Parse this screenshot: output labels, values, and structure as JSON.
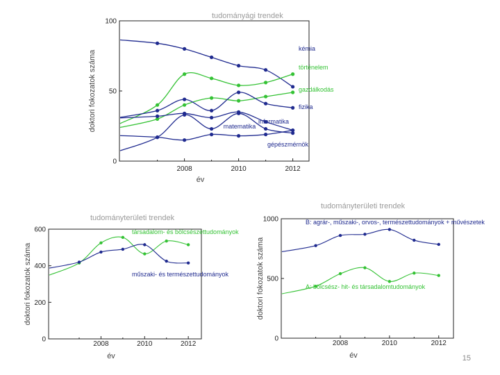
{
  "colors": {
    "blue": "#1f2a8f",
    "green": "#34c234",
    "gray": "#8a8a8a"
  },
  "page_number": "15",
  "chart_data": [
    {
      "type": "line",
      "title": "tudományági trendek",
      "xlabel": "év",
      "ylabel": "doktori  fokozatok  száma",
      "xlim": [
        2005.6,
        2012.6
      ],
      "ylim": [
        0,
        100
      ],
      "x_ticks": [
        2008,
        2010,
        2012
      ],
      "y_ticks": [
        0,
        50,
        100
      ],
      "x": [
        2007,
        2008,
        2009,
        2010,
        2011,
        2012
      ],
      "series": [
        {
          "name": "kémia",
          "color": "blue",
          "values": [
            84,
            80,
            74,
            68,
            65,
            53
          ]
        },
        {
          "name": "történelem",
          "color": "green",
          "values": [
            40,
            62,
            59,
            54,
            56,
            62
          ]
        },
        {
          "name": "gazdálkodás",
          "color": "green",
          "values": [
            30,
            40,
            45,
            43,
            46,
            49
          ]
        },
        {
          "name": "fizika",
          "color": "blue",
          "values": [
            36,
            44,
            36,
            49,
            41,
            38
          ]
        },
        {
          "name": "matematika",
          "color": "blue",
          "values": [
            32,
            34,
            31,
            35,
            28,
            22
          ]
        },
        {
          "name": "informatika",
          "color": "blue",
          "values": [
            17,
            33,
            23,
            34,
            23,
            20
          ]
        },
        {
          "name": "gépészmérnök",
          "color": "blue",
          "values": [
            17,
            15,
            19,
            18,
            19,
            22
          ]
        }
      ]
    },
    {
      "type": "line",
      "title": "tudományterületi trendek",
      "xlabel": "év",
      "ylabel": "doktori  fokozatok  száma",
      "xlim": [
        2005.6,
        2012.6
      ],
      "ylim": [
        0,
        600
      ],
      "x_ticks": [
        2008,
        2010,
        2012
      ],
      "y_ticks": [
        0,
        200,
        400,
        600
      ],
      "x": [
        2007,
        2008,
        2009,
        2010,
        2011,
        2012
      ],
      "series": [
        {
          "name": "társadalom- és bölcsészettudományok",
          "color": "green",
          "values": [
            415,
            525,
            555,
            465,
            535,
            515
          ]
        },
        {
          "name": "műszaki- és természettudományok",
          "color": "blue",
          "values": [
            420,
            475,
            490,
            515,
            425,
            415
          ]
        }
      ]
    },
    {
      "type": "line",
      "title": "tudományterületi trendek",
      "xlabel": "év",
      "ylabel": "doktori  fokozatok  száma",
      "xlim": [
        2005.6,
        2012.6
      ],
      "ylim": [
        0,
        1000
      ],
      "x_ticks": [
        2008,
        2010,
        2012
      ],
      "y_ticks": [
        0,
        500,
        1000
      ],
      "x": [
        2007,
        2008,
        2009,
        2010,
        2011,
        2012
      ],
      "series": [
        {
          "name": "B: agrár-, műszaki-, orvos-, természettudományok + művészetek",
          "color": "blue",
          "values": [
            775,
            860,
            870,
            910,
            820,
            785
          ]
        },
        {
          "name": "A: bölcsész- hit- és társadalomtudományok",
          "color": "green",
          "values": [
            435,
            540,
            590,
            475,
            545,
            525
          ]
        }
      ]
    }
  ]
}
